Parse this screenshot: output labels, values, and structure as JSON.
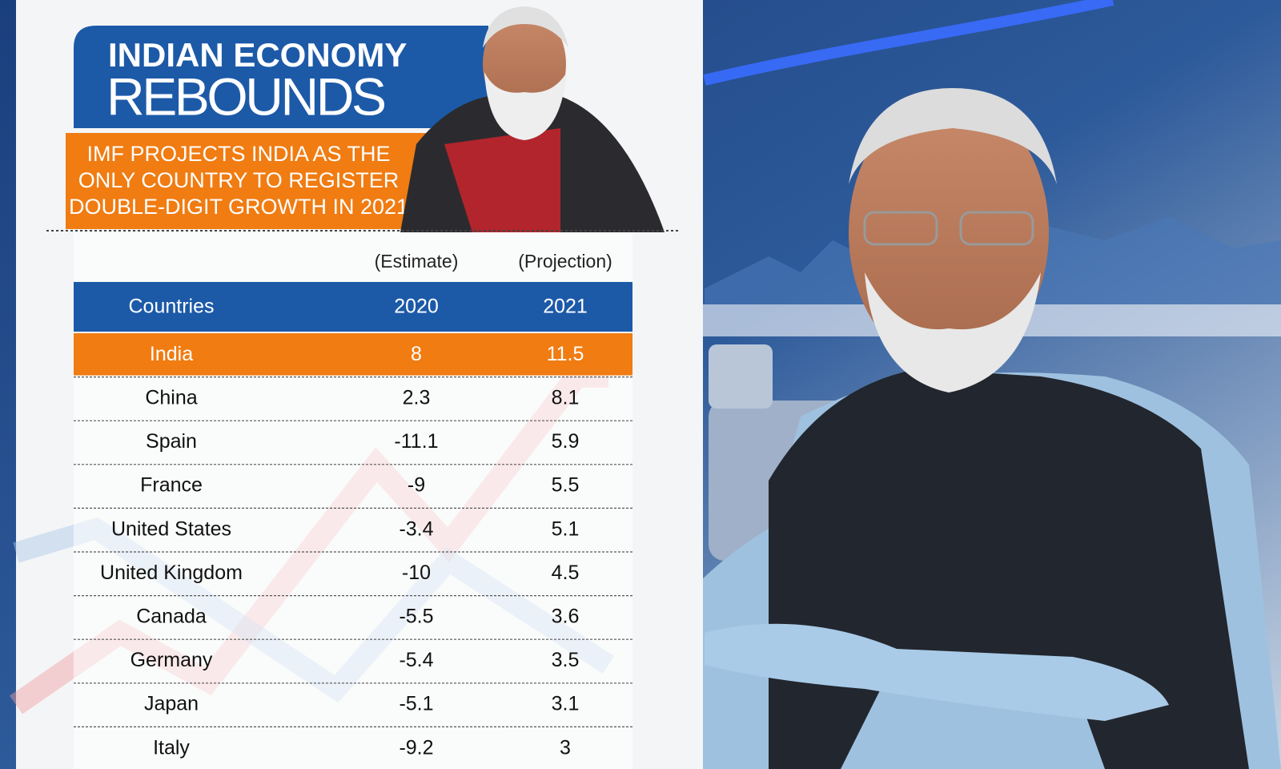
{
  "header": {
    "title_line1": "INDIAN ECONOMY",
    "title_line2": "REBOUNDS",
    "subtitle_lines": [
      "IMF PROJECTS INDIA AS THE",
      "ONLY COUNTRY TO REGISTER",
      "DOUBLE-DIGIT GROWTH IN 2021"
    ]
  },
  "table": {
    "notes": [
      "(Estimate)",
      "(Projection)"
    ],
    "columns": [
      "Countries",
      "2020",
      "2021"
    ],
    "rows": [
      [
        "India",
        "8",
        "11.5"
      ],
      [
        "China",
        "2.3",
        "8.1"
      ],
      [
        "Spain",
        "-11.1",
        "5.9"
      ],
      [
        "France",
        "-9",
        "5.5"
      ],
      [
        "United States",
        "-3.4",
        "5.1"
      ],
      [
        "United Kingdom",
        "-10",
        "4.5"
      ],
      [
        "Canada",
        "-5.5",
        "3.6"
      ],
      [
        "Germany",
        "-5.4",
        "3.5"
      ],
      [
        "Japan",
        "-5.1",
        "3.1"
      ],
      [
        "Italy",
        "-9.2",
        "3"
      ]
    ]
  }
}
